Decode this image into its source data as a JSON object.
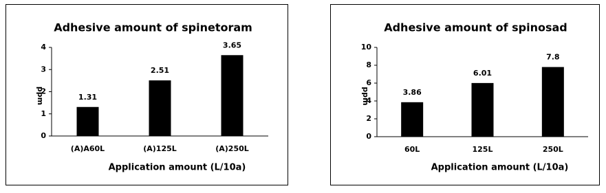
{
  "chart_data": [
    {
      "type": "bar",
      "title": "Adhesive amount of spinetoram",
      "x_label": "Application amount (L/10a)",
      "y_label": "ppm",
      "categories": [
        "(A)A60L",
        "(A)125L",
        "(A)250L"
      ],
      "values": [
        1.31,
        2.51,
        3.65
      ],
      "color": "#000000",
      "ylim": [
        0,
        4
      ],
      "yticks": [
        0,
        1,
        2,
        3,
        4
      ]
    },
    {
      "type": "bar",
      "title": "Adhesive amount of spinosad",
      "x_label": "Application amount (L/10a)",
      "y_label": "ppm",
      "categories": [
        "60L",
        "125L",
        "250L"
      ],
      "values": [
        3.86,
        6.01,
        7.8
      ],
      "color": "#000000",
      "ylim": [
        0,
        10
      ],
      "yticks": [
        0,
        2,
        4,
        6,
        8,
        10
      ]
    }
  ]
}
